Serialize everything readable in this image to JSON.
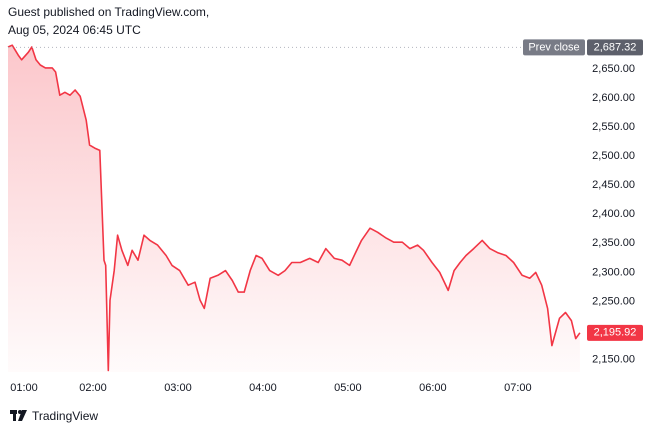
{
  "header": {
    "publisher": "Guest published on TradingView.com,",
    "timestamp": "Aug 05, 2024 06:45 UTC"
  },
  "footer": {
    "brand": "TradingView"
  },
  "chart_data": {
    "type": "area",
    "series": [
      {
        "color": "#f23645",
        "x": [
          1.0,
          1.05,
          1.12,
          1.16,
          1.24,
          1.28,
          1.33,
          1.38,
          1.44,
          1.52,
          1.56,
          1.61,
          1.67,
          1.73,
          1.79,
          1.85,
          1.92,
          1.96,
          2.02,
          2.08,
          2.13,
          2.15,
          2.18,
          2.2,
          2.25,
          2.29,
          2.34,
          2.41,
          2.46,
          2.53,
          2.6,
          2.67,
          2.76,
          2.86,
          2.93,
          3.02,
          3.12,
          3.2,
          3.26,
          3.31,
          3.38,
          3.47,
          3.56,
          3.64,
          3.71,
          3.78,
          3.85,
          3.92,
          3.99,
          4.08,
          4.18,
          4.26,
          4.34,
          4.44,
          4.55,
          4.65,
          4.74,
          4.84,
          4.93,
          5.02,
          5.09,
          5.16,
          5.26,
          5.35,
          5.45,
          5.54,
          5.64,
          5.73,
          5.82,
          5.89,
          5.99,
          6.08,
          6.18,
          6.25,
          6.32,
          6.39,
          6.48,
          6.58,
          6.67,
          6.76,
          6.86,
          6.95,
          7.05,
          7.14,
          7.21,
          7.28,
          7.35,
          7.4,
          7.45,
          7.49,
          7.56,
          7.63,
          7.68,
          7.73
        ],
        "values": [
          2688,
          2691,
          2674,
          2666,
          2679,
          2688,
          2666,
          2657,
          2652,
          2652,
          2645,
          2605,
          2610,
          2605,
          2614,
          2603,
          2562,
          2519,
          2514,
          2510,
          2321,
          2312,
          2131,
          2252,
          2303,
          2364,
          2338,
          2312,
          2338,
          2321,
          2364,
          2355,
          2347,
          2329,
          2312,
          2303,
          2278,
          2283,
          2252,
          2238,
          2290,
          2295,
          2303,
          2286,
          2266,
          2266,
          2303,
          2329,
          2324,
          2303,
          2295,
          2303,
          2317,
          2317,
          2324,
          2317,
          2341,
          2324,
          2321,
          2312,
          2334,
          2355,
          2376,
          2369,
          2359,
          2352,
          2352,
          2341,
          2347,
          2338,
          2317,
          2300,
          2269,
          2303,
          2317,
          2329,
          2341,
          2355,
          2341,
          2334,
          2329,
          2317,
          2295,
          2290,
          2300,
          2278,
          2238,
          2174,
          2200,
          2221,
          2231,
          2217,
          2186,
          2195.92
        ]
      }
    ],
    "xlim": [
      1.0,
      7.79
    ],
    "xticks": [
      {
        "value": 1,
        "label": "01:00"
      },
      {
        "value": 2,
        "label": "02:00"
      },
      {
        "value": 3,
        "label": "03:00"
      },
      {
        "value": 4,
        "label": "04:00"
      },
      {
        "value": 5,
        "label": "05:00"
      },
      {
        "value": 6,
        "label": "06:00"
      },
      {
        "value": 7,
        "label": "07:00"
      }
    ],
    "ylim": [
      2128.5,
      2700
    ],
    "yticks": [
      {
        "value": 2150,
        "label": "2,150.00"
      },
      {
        "value": 2200,
        "label": "2,200.00"
      },
      {
        "value": 2250,
        "label": "2,250.00"
      },
      {
        "value": 2300,
        "label": "2,300.00"
      },
      {
        "value": 2350,
        "label": "2,350.00"
      },
      {
        "value": 2400,
        "label": "2,400.00"
      },
      {
        "value": 2450,
        "label": "2,450.00"
      },
      {
        "value": 2500,
        "label": "2,500.00"
      },
      {
        "value": 2550,
        "label": "2,550.00"
      },
      {
        "value": 2600,
        "label": "2,600.00"
      },
      {
        "value": 2650,
        "label": "2,650.00"
      }
    ],
    "prev_close": {
      "name": "Prev close",
      "value": 2687.32,
      "label": "2,687.32"
    },
    "last_price": {
      "value": 2195.92,
      "label": "2,195.92"
    }
  }
}
